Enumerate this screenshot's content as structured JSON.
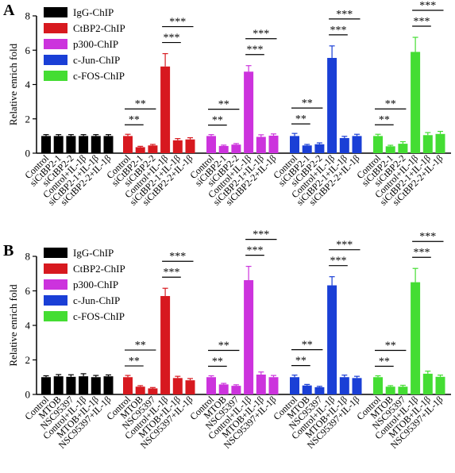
{
  "chart_data": [
    {
      "panel_label": "A",
      "type": "bar",
      "ylabel": "Relative enrich fold",
      "ylim": [
        0,
        8
      ],
      "yticks": [
        "0",
        "2",
        "4",
        "6",
        "8"
      ],
      "categories": [
        "Control",
        "siCtBP2-1",
        "siCtBP2-2",
        "Control+IL-1β",
        "siCtBP2-1+IL-1β",
        "siCtBP2-2+IL-1β"
      ],
      "series": [
        {
          "name": "IgG-ChIP",
          "color": "#000000",
          "values": [
            1.0,
            1.0,
            1.0,
            1.0,
            1.0,
            1.0
          ],
          "errors": [
            0.08,
            0.08,
            0.08,
            0.08,
            0.08,
            0.08
          ]
        },
        {
          "name": "CtBP2-ChIP",
          "color": "#d7191f",
          "values": [
            1.0,
            0.35,
            0.45,
            5.05,
            0.75,
            0.8
          ],
          "errors": [
            0.1,
            0.05,
            0.06,
            0.75,
            0.1,
            0.1
          ]
        },
        {
          "name": "p300-ChIP",
          "color": "#cc33dd",
          "values": [
            1.0,
            0.42,
            0.5,
            4.75,
            0.95,
            1.02
          ],
          "errors": [
            0.08,
            0.05,
            0.06,
            0.35,
            0.12,
            0.1
          ]
        },
        {
          "name": "c-Jun-ChIP",
          "color": "#1a3fd6",
          "values": [
            1.0,
            0.45,
            0.52,
            5.55,
            0.88,
            1.0
          ],
          "errors": [
            0.15,
            0.06,
            0.08,
            0.7,
            0.1,
            0.1
          ]
        },
        {
          "name": "c-FOS-ChIP",
          "color": "#44dd33",
          "values": [
            1.0,
            0.4,
            0.55,
            5.9,
            1.05,
            1.12
          ],
          "errors": [
            0.1,
            0.06,
            0.12,
            0.85,
            0.15,
            0.15
          ]
        }
      ],
      "significance": [
        {
          "label": "**",
          "from": "Control",
          "to": "siCtBP2-1"
        },
        {
          "label": "**",
          "from": "Control",
          "to": "siCtBP2-2"
        },
        {
          "label": "***",
          "from": "Control+IL-1β",
          "to": "siCtBP2-1+IL-1β"
        },
        {
          "label": "***",
          "from": "Control+IL-1β",
          "to": "siCtBP2-2+IL-1β"
        }
      ]
    },
    {
      "panel_label": "B",
      "type": "bar",
      "ylabel": "Relative enrich fold",
      "ylim": [
        0,
        8
      ],
      "yticks": [
        "0",
        "2",
        "4",
        "6",
        "8"
      ],
      "categories": [
        "Control",
        "MTOB",
        "NSC95397",
        "Control+IL-1β",
        "MTOB+IL-1β",
        "NSC95397+IL-1β"
      ],
      "series": [
        {
          "name": "IgG-ChIP",
          "color": "#000000",
          "values": [
            1.0,
            1.05,
            1.02,
            1.05,
            1.0,
            1.05
          ],
          "errors": [
            0.08,
            0.1,
            0.12,
            0.15,
            0.1,
            0.08
          ]
        },
        {
          "name": "CtBP2-ChIP",
          "color": "#d7191f",
          "values": [
            1.0,
            0.45,
            0.35,
            5.7,
            0.95,
            0.82
          ],
          "errors": [
            0.1,
            0.06,
            0.05,
            0.45,
            0.1,
            0.1
          ]
        },
        {
          "name": "p300-ChIP",
          "color": "#cc33dd",
          "values": [
            1.0,
            0.58,
            0.5,
            6.62,
            1.15,
            1.0
          ],
          "errors": [
            0.08,
            0.06,
            0.06,
            0.8,
            0.15,
            0.1
          ]
        },
        {
          "name": "c-Jun-ChIP",
          "color": "#1a3fd6",
          "values": [
            1.0,
            0.52,
            0.42,
            6.32,
            1.0,
            0.95
          ],
          "errors": [
            0.12,
            0.06,
            0.05,
            0.5,
            0.12,
            0.1
          ]
        },
        {
          "name": "c-FOS-ChIP",
          "color": "#44dd33",
          "values": [
            1.0,
            0.45,
            0.45,
            6.5,
            1.2,
            1.02
          ],
          "errors": [
            0.08,
            0.06,
            0.08,
            0.8,
            0.15,
            0.1
          ]
        }
      ],
      "significance": [
        {
          "label": "**",
          "from": "Control",
          "to": "MTOB"
        },
        {
          "label": "**",
          "from": "Control",
          "to": "NSC95397"
        },
        {
          "label": "***",
          "from": "Control+IL-1β",
          "to": "MTOB+IL-1β"
        },
        {
          "label": "***",
          "from": "Control+IL-1β",
          "to": "NSC95397+IL-1β"
        }
      ]
    }
  ]
}
